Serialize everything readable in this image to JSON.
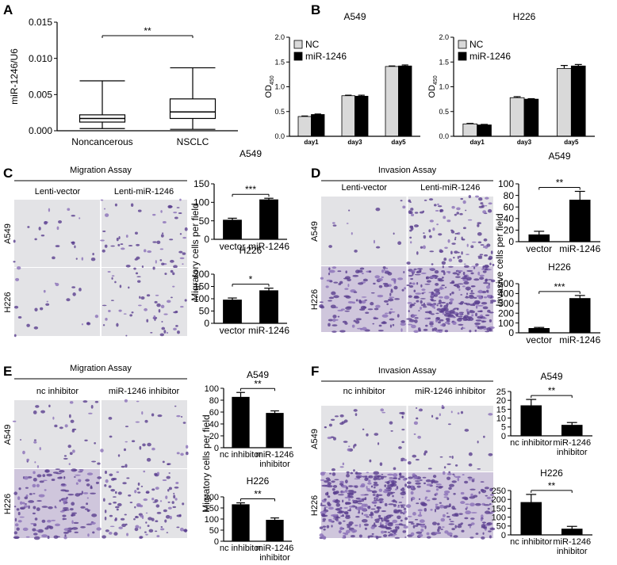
{
  "panels": [
    {
      "letter": "A"
    },
    {
      "letter": "B"
    },
    {
      "letter": "C",
      "title": "Migration Assay",
      "columns": [
        "Lenti-vector",
        "Lenti-miR-1246"
      ],
      "rows": [
        "A549",
        "H226"
      ],
      "ylabel": "Migratory cells per field"
    },
    {
      "letter": "D",
      "title": "Invasion Assay",
      "columns": [
        "Lenti-vector",
        "Lenti-miR-1246"
      ],
      "rows": [
        "A549",
        "H226"
      ],
      "ylabel": "Invasive cells per field"
    },
    {
      "letter": "E",
      "title": "Migration Assay",
      "columns": [
        "nc inhibitor",
        "miR-1246 inhibitor"
      ],
      "rows": [
        "A549",
        "H226"
      ],
      "ylabel": "Migratory cells per field"
    },
    {
      "letter": "F",
      "title": "Invasion Assay",
      "columns": [
        "nc inhibitor",
        "miR-1246 inhibitor"
      ],
      "rows": [
        "A549",
        "H226"
      ]
    }
  ],
  "chart_data": [
    {
      "type": "box",
      "ylabel": "miR-1246/U6",
      "categories": [
        "Noncancerous",
        "NSCLC"
      ],
      "boxes": [
        {
          "min": 0.0003,
          "q1": 0.0012,
          "median": 0.0017,
          "q3": 0.0022,
          "max": 0.0069
        },
        {
          "min": 0.0002,
          "q1": 0.0017,
          "median": 0.0026,
          "q3": 0.0044,
          "max": 0.0087
        }
      ],
      "annotation": "**",
      "ylim": [
        0,
        0.015
      ],
      "yticks": [
        {
          "value": 0,
          "label": "0.000"
        },
        {
          "value": 0.005,
          "label": "0.005"
        },
        {
          "value": 0.01,
          "label": "0.010"
        },
        {
          "value": 0.015,
          "label": "0.015"
        }
      ]
    },
    {
      "type": "bar",
      "title": "A549",
      "ylabel_parts": [
        "OD",
        "450"
      ],
      "categories": [
        "day1",
        "day3",
        "day5"
      ],
      "series": [
        {
          "name": "NC",
          "color": "#d9d9d9",
          "values": [
            0.4,
            0.82,
            1.41
          ],
          "errors": [
            0.01,
            0.01,
            0.01
          ]
        },
        {
          "name": "miR-1246",
          "color": "#000000",
          "values": [
            0.44,
            0.81,
            1.42
          ],
          "errors": [
            0.01,
            0.02,
            0.02
          ]
        }
      ],
      "ylim": [
        0,
        2
      ],
      "yticks": [
        {
          "value": 0,
          "label": "0.0"
        },
        0.5,
        {
          "value": 1,
          "label": "1.0"
        },
        1.5,
        {
          "value": 2,
          "label": "2.0"
        }
      ],
      "legend": "top-left"
    },
    {
      "type": "bar",
      "title": "H226",
      "ylabel_parts": [
        "OD",
        "450"
      ],
      "categories": [
        "day1",
        "day3",
        "day5"
      ],
      "series": [
        {
          "name": "NC",
          "color": "#d9d9d9",
          "values": [
            0.25,
            0.78,
            1.37
          ],
          "errors": [
            0.01,
            0.02,
            0.06
          ]
        },
        {
          "name": "miR-1246",
          "color": "#000000",
          "values": [
            0.23,
            0.75,
            1.42
          ],
          "errors": [
            0.01,
            0.01,
            0.03
          ]
        }
      ],
      "ylim": [
        0,
        2
      ],
      "yticks": [
        {
          "value": 0,
          "label": "0.0"
        },
        0.5,
        {
          "value": 1,
          "label": "1.0"
        },
        1.5,
        {
          "value": 2,
          "label": "2.0"
        }
      ],
      "legend": "top-left"
    },
    {
      "type": "bar",
      "title": "A549",
      "categories": [
        "vector",
        "miR-1246"
      ],
      "values": [
        52,
        107
      ],
      "errors": [
        5,
        4
      ],
      "color": "#000000",
      "annotation": "***",
      "ylim": [
        0,
        150
      ],
      "yticks": [
        0,
        50,
        100,
        150
      ]
    },
    {
      "type": "bar",
      "title": "H226",
      "categories": [
        "vector",
        "miR-1246"
      ],
      "values": [
        95,
        133
      ],
      "errors": [
        8,
        10
      ],
      "color": "#000000",
      "annotation": "*",
      "ylim": [
        0,
        200
      ],
      "yticks": [
        0,
        50,
        100,
        150,
        200
      ]
    },
    {
      "type": "bar",
      "title": "A549",
      "categories": [
        "vector",
        "miR-1246"
      ],
      "values": [
        12,
        72
      ],
      "errors": [
        6,
        15
      ],
      "color": "#000000",
      "annotation": "**",
      "ylim": [
        0,
        100
      ],
      "yticks": [
        0,
        20,
        40,
        60,
        80,
        100
      ]
    },
    {
      "type": "bar",
      "title": "H226",
      "categories": [
        "vector",
        "miR-1246"
      ],
      "values": [
        45,
        350
      ],
      "errors": [
        10,
        30
      ],
      "color": "#000000",
      "annotation": "***",
      "ylim": [
        0,
        500
      ],
      "yticks": [
        0,
        100,
        200,
        300,
        400,
        500
      ]
    },
    {
      "type": "bar",
      "title": "A549",
      "categories": [
        "nc inhibitor",
        "miR-1246 inhibitor"
      ],
      "values": [
        85,
        58
      ],
      "errors": [
        8,
        4
      ],
      "color": "#000000",
      "annotation": "**",
      "ylim": [
        0,
        100
      ],
      "yticks": [
        0,
        20,
        40,
        60,
        80,
        100
      ]
    },
    {
      "type": "bar",
      "title": "H226",
      "categories": [
        "nc inhibitor",
        "miR-1246 inhibitor"
      ],
      "values": [
        165,
        95
      ],
      "errors": [
        8,
        10
      ],
      "color": "#000000",
      "annotation": "**",
      "ylim": [
        0,
        200
      ],
      "yticks": [
        0,
        50,
        100,
        150,
        200
      ]
    },
    {
      "type": "bar",
      "title": "A549",
      "categories": [
        "nc inhibitor",
        "miR-1246 inhibitor"
      ],
      "values": [
        17,
        6
      ],
      "errors": [
        3.5,
        1.5
      ],
      "color": "#000000",
      "annotation": "**",
      "ylim": [
        0,
        25
      ],
      "yticks": [
        0,
        5,
        10,
        15,
        20,
        25
      ]
    },
    {
      "type": "bar",
      "title": "H226",
      "categories": [
        "nc inhibitor",
        "miR-1246 inhibitor"
      ],
      "values": [
        183,
        33
      ],
      "errors": [
        45,
        15
      ],
      "color": "#000000",
      "annotation": "**",
      "ylim": [
        0,
        250
      ],
      "yticks": [
        0,
        50,
        100,
        150,
        200,
        250
      ]
    }
  ]
}
